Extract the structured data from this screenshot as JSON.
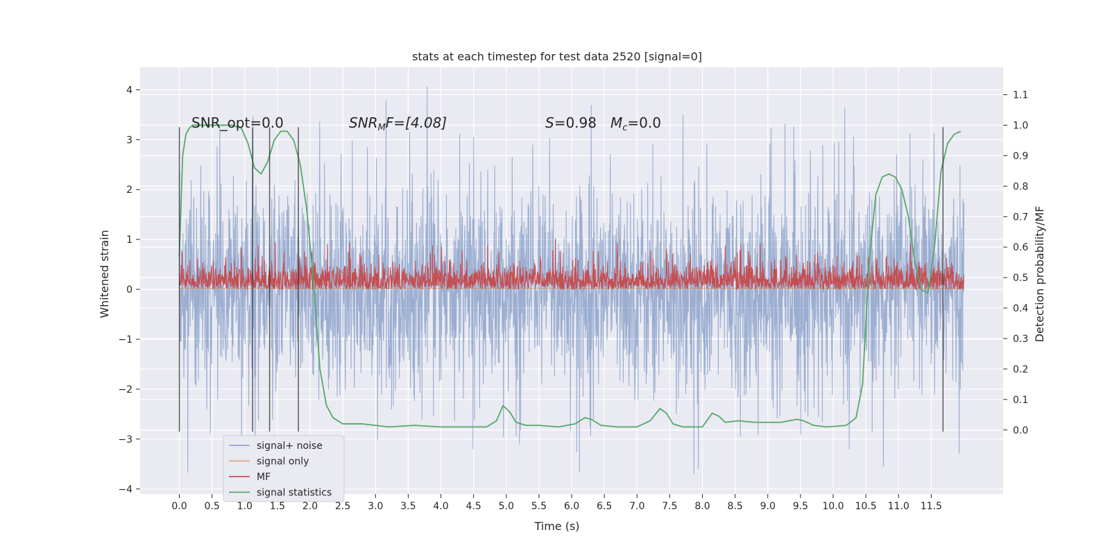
{
  "chart_data": {
    "type": "line",
    "title": "stats at each timestep for test data 2520 [signal=0]",
    "xlabel": "Time (s)",
    "ylabel": "Whitened strain",
    "ylabel_right": "Detection probability/MF",
    "xlim": [
      -0.6,
      12.6
    ],
    "ylim": [
      -4.1,
      4.45
    ],
    "ylim_right": [
      -0.21,
      1.19
    ],
    "x_ticks": [
      "0.0",
      "0.5",
      "1.0",
      "1.5",
      "2.0",
      "2.5",
      "3.0",
      "3.5",
      "4.0",
      "4.5",
      "5.0",
      "5.5",
      "6.0",
      "6.5",
      "7.0",
      "7.5",
      "8.0",
      "8.5",
      "9.0",
      "9.5",
      "10.0",
      "10.5",
      "11.0",
      "11.5"
    ],
    "y_ticks": [
      "−4",
      "−3",
      "−2",
      "−1",
      "0",
      "1",
      "2",
      "3",
      "4"
    ],
    "y_ticks_right": [
      "0.0",
      "0.1",
      "0.2",
      "0.3",
      "0.4",
      "0.5",
      "0.6",
      "0.7",
      "0.8",
      "0.9",
      "1.0",
      "1.1"
    ],
    "grid": true,
    "legend_position": "lower-left",
    "annotations": {
      "snr_opt": "SNR_opt=0.0",
      "snr_mf_prefix": "SNR",
      "snr_mf_sub": "M",
      "snr_mf_suffix": "F=[4.08]",
      "s_var": "S",
      "s_value": "=0.98",
      "mc_var": "M",
      "mc_sub": "c",
      "mc_value": "=0.0"
    },
    "vertical_markers_x": [
      0.0,
      1.12,
      1.38,
      1.82,
      11.68
    ],
    "series": [
      {
        "name": "signal+ noise",
        "color": "#4c72b0",
        "axis": "left",
        "kind": "noise",
        "x_range": [
          0.0,
          12.0
        ],
        "envelope_typical": [
          -1.6,
          1.6
        ],
        "envelope_extreme": [
          -3.7,
          4.1
        ]
      },
      {
        "name": "signal only",
        "color": "#dd8452",
        "axis": "left",
        "x": [
          0.0,
          12.0
        ],
        "y": [
          0.02,
          0.02
        ]
      },
      {
        "name": "MF",
        "color": "#c44e52",
        "axis": "left",
        "kind": "noise",
        "x_range": [
          0.0,
          12.0
        ],
        "envelope_typical": [
          0.0,
          0.65
        ],
        "envelope_extreme": [
          0.0,
          1.0
        ]
      },
      {
        "name": "signal statistics",
        "color": "#55a868",
        "axis": "right",
        "x": [
          0.0,
          0.05,
          0.1,
          0.15,
          0.2,
          0.3,
          0.5,
          0.8,
          0.95,
          1.05,
          1.15,
          1.25,
          1.35,
          1.45,
          1.55,
          1.65,
          1.75,
          1.85,
          1.95,
          2.05,
          2.15,
          2.25,
          2.35,
          2.5,
          2.8,
          3.2,
          3.6,
          4.0,
          4.4,
          4.7,
          4.85,
          4.95,
          5.05,
          5.15,
          5.3,
          5.5,
          5.8,
          6.05,
          6.2,
          6.3,
          6.45,
          6.7,
          7.0,
          7.2,
          7.35,
          7.45,
          7.55,
          7.7,
          8.0,
          8.15,
          8.25,
          8.35,
          8.55,
          8.8,
          9.2,
          9.45,
          9.55,
          9.7,
          9.9,
          10.2,
          10.35,
          10.45,
          10.55,
          10.65,
          10.75,
          10.85,
          10.95,
          11.05,
          11.15,
          11.25,
          11.35,
          11.45,
          11.55,
          11.65,
          11.75,
          11.85,
          11.95
        ],
        "y": [
          0.57,
          0.9,
          0.97,
          0.99,
          1.0,
          1.0,
          1.0,
          1.0,
          0.99,
          0.94,
          0.86,
          0.84,
          0.88,
          0.95,
          0.98,
          0.98,
          0.95,
          0.87,
          0.72,
          0.49,
          0.2,
          0.08,
          0.04,
          0.02,
          0.02,
          0.01,
          0.015,
          0.01,
          0.01,
          0.01,
          0.03,
          0.08,
          0.06,
          0.025,
          0.015,
          0.015,
          0.01,
          0.02,
          0.04,
          0.035,
          0.015,
          0.01,
          0.01,
          0.03,
          0.07,
          0.055,
          0.02,
          0.01,
          0.01,
          0.055,
          0.045,
          0.025,
          0.03,
          0.025,
          0.025,
          0.035,
          0.03,
          0.015,
          0.01,
          0.015,
          0.04,
          0.15,
          0.55,
          0.77,
          0.83,
          0.84,
          0.83,
          0.79,
          0.7,
          0.55,
          0.46,
          0.45,
          0.6,
          0.85,
          0.94,
          0.97,
          0.98
        ]
      }
    ]
  }
}
